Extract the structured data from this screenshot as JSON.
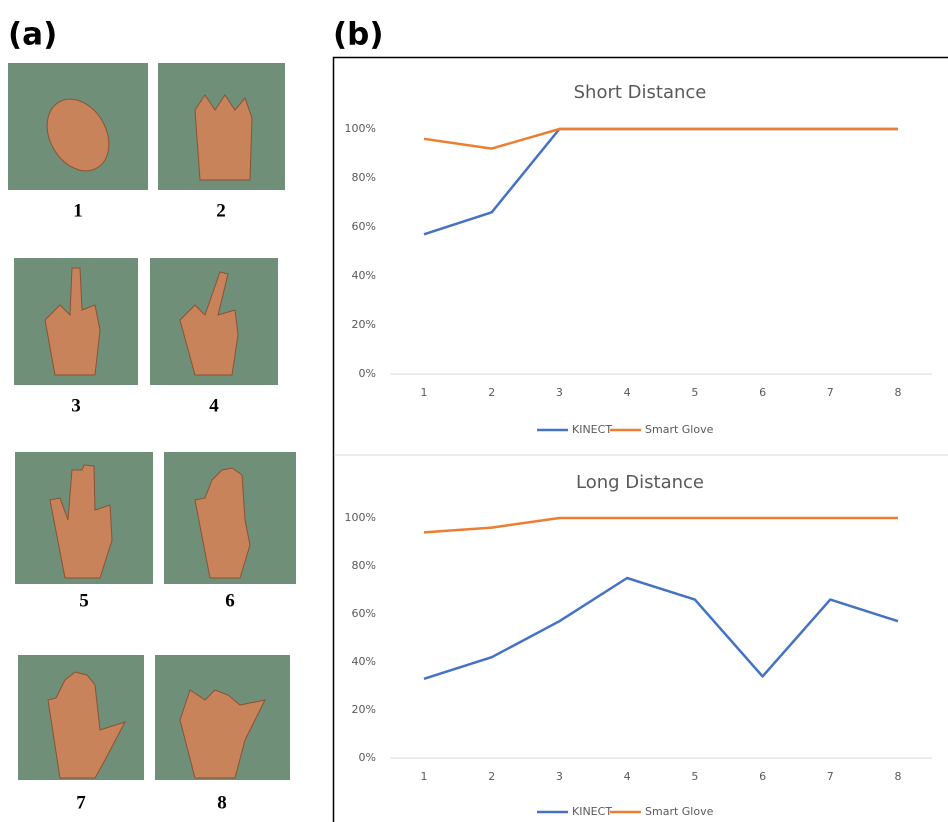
{
  "panel_labels": {
    "a": "(a)",
    "b": "(b)"
  },
  "gesture_labels": [
    "1",
    "2",
    "3",
    "4",
    "5",
    "6",
    "7",
    "8"
  ],
  "chart_data": [
    {
      "type": "line",
      "title": "Short Distance",
      "categories": [
        "1",
        "2",
        "3",
        "4",
        "5",
        "6",
        "7",
        "8"
      ],
      "series": [
        {
          "name": "KINECT",
          "color": "#4472c4",
          "values": [
            57,
            66,
            100,
            100,
            100,
            100,
            100,
            100
          ]
        },
        {
          "name": "Smart Glove",
          "color": "#ed7d31",
          "values": [
            96,
            92,
            100,
            100,
            100,
            100,
            100,
            100
          ]
        }
      ],
      "ylim": [
        0,
        100
      ],
      "yticks": [
        {
          "value": 0,
          "label": "0%"
        },
        {
          "value": 20,
          "label": "20%"
        },
        {
          "value": 40,
          "label": "40%"
        },
        {
          "value": 60,
          "label": "60%"
        },
        {
          "value": 80,
          "label": "80%"
        },
        {
          "value": 100,
          "label": "100%"
        }
      ],
      "grid": false,
      "legend": "bottom"
    },
    {
      "type": "line",
      "title": "Long Distance",
      "categories": [
        "1",
        "2",
        "3",
        "4",
        "5",
        "6",
        "7",
        "8"
      ],
      "series": [
        {
          "name": "KINECT",
          "color": "#4472c4",
          "values": [
            33,
            42,
            57,
            75,
            66,
            34,
            66,
            57
          ]
        },
        {
          "name": "Smart Glove",
          "color": "#ed7d31",
          "values": [
            94,
            96,
            100,
            100,
            100,
            100,
            100,
            100
          ]
        }
      ],
      "ylim": [
        0,
        100
      ],
      "yticks": [
        {
          "value": 0,
          "label": "0%"
        },
        {
          "value": 20,
          "label": "20%"
        },
        {
          "value": 40,
          "label": "40%"
        },
        {
          "value": 60,
          "label": "60%"
        },
        {
          "value": 80,
          "label": "80%"
        },
        {
          "value": 100,
          "label": "100%"
        }
      ],
      "grid": false,
      "legend": "bottom"
    }
  ]
}
